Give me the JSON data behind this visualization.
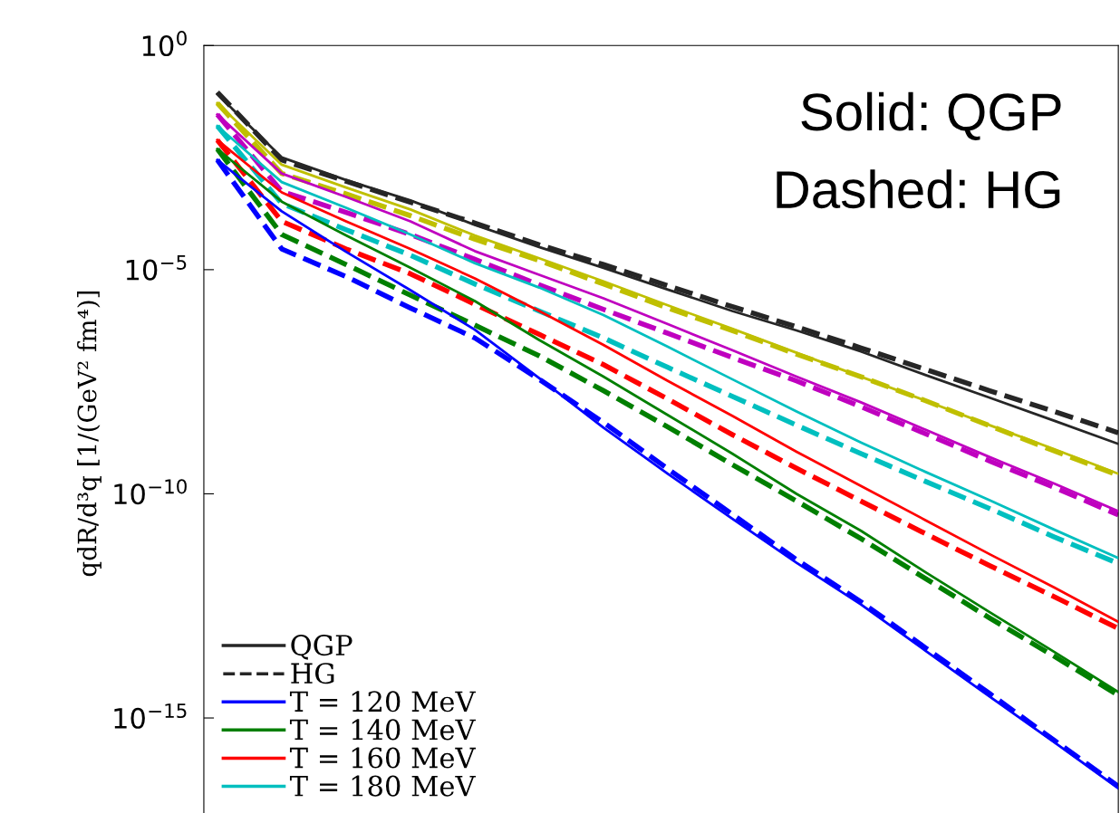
{
  "chart_data": {
    "type": "line",
    "ylabel": "qdR/d³q [1/(GeV² fm⁴)]",
    "annotations": [
      "Solid: QGP",
      "Dashed: HG"
    ],
    "categories": [
      null,
      null,
      null,
      null,
      null,
      null,
      null,
      null,
      null,
      null,
      null,
      null,
      null,
      null,
      null
    ],
    "log": true,
    "ylim": [
      5e-18,
      1
    ],
    "yticks": [
      {
        "value": 1,
        "label": "10$^{0}$"
      },
      {
        "value": 1e-05,
        "label": "10$^{−5}$"
      },
      {
        "value": 1e-10,
        "label": "10$^{−10}$"
      },
      {
        "value": 1e-15,
        "label": "10$^{−15}$"
      }
    ],
    "grid": false,
    "legend": "bottom left",
    "marker": "none",
    "series": [
      {
        "name": "QGP",
        "color": "#262626",
        "line_style": "solid",
        "values": [
          0.082,
          0.0032,
          0.001,
          0.00035,
          0.0001,
          3.2e-05,
          1.1e-05,
          3.6e-06,
          1.2e-06,
          4.4e-07,
          1.5e-07,
          4.5e-08,
          1.4e-08,
          4.3e-09,
          1.3e-09
        ]
      },
      {
        "name": "HG",
        "color": "#262626",
        "line_style": "dashed",
        "values": [
          0.091,
          0.0028,
          0.00094,
          0.00032,
          0.00011,
          3.6e-05,
          1.3e-05,
          4.4e-06,
          1.5e-06,
          5.3e-07,
          1.8e-07,
          6e-08,
          2e-08,
          6.9e-09,
          2.3e-09
        ]
      },
      {
        "name": "T = 120 MeV",
        "color": "#0000ff",
        "line_style": "solid",
        "values": [
          0.0028,
          0.0002,
          2.5e-05,
          3.5e-06,
          4.6e-07,
          3.8e-08,
          3e-09,
          2.8e-10,
          2.8e-11,
          2.9e-12,
          3.4e-13,
          3.2e-14,
          3e-15,
          2.9e-16,
          2.7e-17
        ]
      },
      {
        "name": "T = 140 MeV",
        "color": "#007f00",
        "line_style": "solid",
        "values": [
          0.0049,
          0.00033,
          5.8e-05,
          1.1e-05,
          2e-06,
          2.7e-07,
          4.1e-08,
          5.7e-09,
          7.9e-10,
          1e-10,
          1.5e-11,
          1.8e-12,
          2.3e-13,
          3e-14,
          3.8e-15
        ]
      },
      {
        "name": "T = 160 MeV",
        "color": "#ff0000",
        "line_style": "solid",
        "values": [
          0.0078,
          0.00053,
          0.00012,
          2.9e-05,
          6.4e-06,
          1.2e-06,
          2.1e-07,
          3.3e-08,
          5.5e-09,
          8.7e-10,
          1.5e-10,
          2.6e-11,
          4.5e-12,
          8.2e-13,
          1.4e-13
        ]
      },
      {
        "name": "T = 180 MeV",
        "color": "#00bfbf",
        "line_style": "solid",
        "values": [
          0.016,
          0.0009,
          0.00024,
          6.1e-05,
          1.4e-05,
          4e-06,
          9.7e-07,
          1.9e-07,
          3.6e-08,
          6.9e-09,
          1.4e-09,
          3.1e-10,
          7.2e-11,
          1.6e-11,
          3.7e-12
        ]
      },
      {
        "color": "#bf00bf",
        "line_style": "solid",
        "values": [
          0.029,
          0.0014,
          0.00042,
          0.00012,
          2.6e-05,
          7.7e-06,
          2.3e-06,
          6.1e-07,
          1.6e-07,
          4.1e-08,
          1.1e-08,
          2.7e-09,
          6.6e-10,
          1.7e-10,
          4.1e-11
        ]
      },
      {
        "color": "#bfbf00",
        "line_style": "solid",
        "values": [
          0.052,
          0.0022,
          0.00068,
          0.00022,
          5.8e-05,
          1.8e-05,
          5.5e-06,
          1.6e-06,
          4.8e-07,
          1.4e-07,
          4.1e-08,
          1.2e-08,
          3.4e-09,
          1e-09,
          2.8e-10
        ]
      },
      {
        "color": "#bfbf00",
        "line_style": "dashed",
        "values": [
          0.052,
          0.0014,
          0.00049,
          0.00016,
          4.8e-05,
          1.6e-05,
          4.8e-06,
          1.4e-06,
          4.4e-07,
          1.3e-07,
          4.1e-08,
          1.2e-08,
          3.3e-09,
          9.1e-10,
          2.6e-10
        ]
      },
      {
        "color": "#bf00bf",
        "line_style": "dashed",
        "values": [
          0.029,
          0.00056,
          0.00019,
          6.1e-05,
          1.7e-05,
          4.6e-06,
          1.3e-06,
          3.8e-07,
          1.1e-07,
          3.3e-08,
          8.8e-09,
          2.2e-09,
          5.4e-10,
          1.4e-10,
          3.4e-11
        ]
      },
      {
        "color": "#00bfbf",
        "line_style": "dashed",
        "values": [
          0.016,
          0.0003,
          7.8e-05,
          2.1e-05,
          4.8e-06,
          1.2e-06,
          3e-07,
          6.6e-08,
          1.5e-08,
          3.4e-09,
          7.9e-10,
          1.9e-10,
          4.7e-11,
          1.1e-11,
          2.8e-12
        ]
      },
      {
        "color": "#ff0000",
        "line_style": "dashed",
        "values": [
          0.0078,
          0.00012,
          2.9e-05,
          8.1e-06,
          1.7e-06,
          3.6e-07,
          7.6e-08,
          1.3e-08,
          2.1e-09,
          3.7e-10,
          6.9e-11,
          1.3e-11,
          2.5e-12,
          5.1e-13,
          9.9e-14
        ]
      },
      {
        "color": "#007f00",
        "line_style": "dashed",
        "values": [
          0.0049,
          6.1e-05,
          1.3e-05,
          2.7e-06,
          5.8e-07,
          1.2e-07,
          2e-08,
          3.1e-09,
          4.5e-10,
          6.9e-11,
          1e-11,
          1.3e-12,
          1.7e-13,
          2.4e-14,
          3.2e-15
        ]
      },
      {
        "color": "#0000ff",
        "line_style": "dashed",
        "values": [
          0.0028,
          2.9e-05,
          7e-06,
          1.4e-06,
          3e-07,
          3.6e-08,
          3.9e-09,
          3.6e-10,
          3.5e-11,
          3.4e-12,
          3.9e-13,
          3.7e-14,
          3.5e-15,
          3.2e-16,
          3e-17
        ]
      }
    ]
  }
}
